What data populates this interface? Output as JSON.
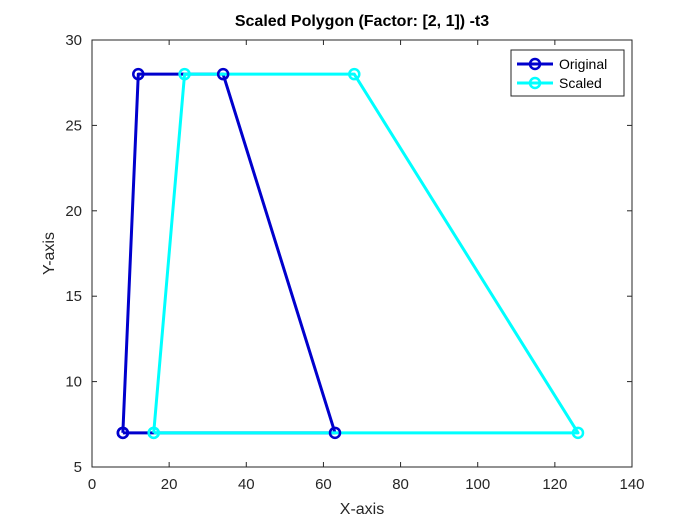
{
  "chart_data": {
    "type": "line",
    "title": "Scaled Polygon (Factor: [2, 1]) -t3",
    "xlabel": "X-axis",
    "ylabel": "Y-axis",
    "xlim": [
      0,
      140
    ],
    "ylim": [
      5,
      30
    ],
    "xticks": [
      0,
      20,
      40,
      60,
      80,
      100,
      120,
      140
    ],
    "yticks": [
      5,
      10,
      15,
      20,
      25,
      30
    ],
    "grid": false,
    "legend_position": "top-right",
    "series": [
      {
        "name": "Original",
        "color": "#0000CD",
        "marker": "circle",
        "x": [
          8,
          12,
          34,
          63,
          8
        ],
        "y": [
          7,
          28,
          28,
          7,
          7
        ]
      },
      {
        "name": "Scaled",
        "color": "#00FFFF",
        "marker": "circle",
        "x": [
          16,
          24,
          68,
          126,
          16
        ],
        "y": [
          7,
          28,
          28,
          7,
          7
        ]
      }
    ]
  }
}
